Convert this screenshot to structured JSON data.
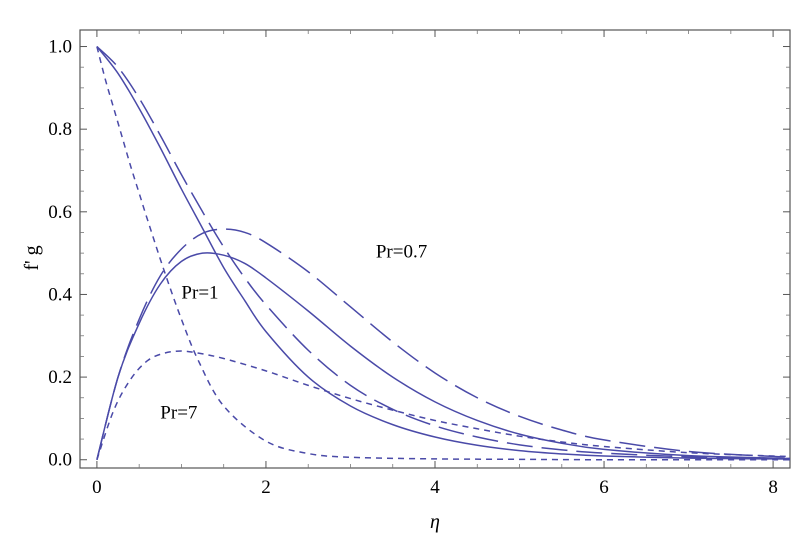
{
  "chart_data": {
    "type": "line",
    "title": "",
    "xlabel": "η",
    "ylabel": "f' g",
    "xlim": [
      -0.2,
      8.2
    ],
    "ylim": [
      -0.02,
      1.04
    ],
    "x_ticks": [
      0,
      2,
      4,
      6,
      8
    ],
    "y_ticks": [
      0.0,
      0.2,
      0.4,
      0.6,
      0.8,
      1.0
    ],
    "x_tick_labels": [
      "0",
      "2",
      "4",
      "6",
      "8"
    ],
    "y_tick_labels": [
      "0.0",
      "0.2",
      "0.4",
      "0.6",
      "0.8",
      "1.0"
    ],
    "grid": false,
    "line_color": "#4a4aa8",
    "annotations": [
      {
        "text": "Pr=0.7",
        "x": 3.3,
        "y": 0.49
      },
      {
        "text": "Pr=1",
        "x": 1.0,
        "y": 0.39
      },
      {
        "text": "Pr=7",
        "x": 0.75,
        "y": 0.1
      }
    ],
    "series": [
      {
        "name": "f' (Pr=1)",
        "style": "solid",
        "x": [
          0,
          0.25,
          0.5,
          0.75,
          1.0,
          1.25,
          1.5,
          1.75,
          2.0,
          2.5,
          3.0,
          3.5,
          4.0,
          4.5,
          5.0,
          5.5,
          6.0,
          7.0,
          8.0,
          8.2
        ],
        "y": [
          1.0,
          0.935,
          0.85,
          0.755,
          0.655,
          0.56,
          0.465,
          0.385,
          0.31,
          0.2,
          0.13,
          0.085,
          0.055,
          0.035,
          0.022,
          0.014,
          0.009,
          0.004,
          0.002,
          0.002
        ]
      },
      {
        "name": "g (Pr=1)",
        "style": "solid",
        "x": [
          0,
          0.25,
          0.5,
          0.75,
          1.0,
          1.25,
          1.5,
          1.75,
          2.0,
          2.5,
          3.0,
          3.5,
          4.0,
          4.5,
          5.0,
          5.5,
          6.0,
          7.0,
          8.0,
          8.2
        ],
        "y": [
          0.0,
          0.2,
          0.33,
          0.425,
          0.48,
          0.5,
          0.495,
          0.475,
          0.44,
          0.36,
          0.275,
          0.2,
          0.14,
          0.095,
          0.062,
          0.04,
          0.025,
          0.01,
          0.004,
          0.003
        ]
      },
      {
        "name": "f' (Pr=0.7)",
        "style": "longdash",
        "x": [
          0,
          0.25,
          0.5,
          0.75,
          1.0,
          1.25,
          1.5,
          1.75,
          2.0,
          2.5,
          3.0,
          3.5,
          4.0,
          4.5,
          5.0,
          5.5,
          6.0,
          7.0,
          8.0,
          8.2
        ],
        "y": [
          1.0,
          0.95,
          0.875,
          0.785,
          0.69,
          0.6,
          0.515,
          0.44,
          0.375,
          0.265,
          0.18,
          0.122,
          0.082,
          0.055,
          0.036,
          0.024,
          0.016,
          0.007,
          0.003,
          0.003
        ]
      },
      {
        "name": "g (Pr=0.7)",
        "style": "longdash",
        "x": [
          0,
          0.25,
          0.5,
          0.75,
          1.0,
          1.25,
          1.5,
          1.75,
          2.0,
          2.5,
          3.0,
          3.5,
          4.0,
          4.5,
          5.0,
          5.5,
          6.0,
          7.0,
          8.0,
          8.2
        ],
        "y": [
          0.0,
          0.2,
          0.34,
          0.445,
          0.51,
          0.548,
          0.558,
          0.55,
          0.525,
          0.455,
          0.37,
          0.285,
          0.21,
          0.15,
          0.105,
          0.072,
          0.048,
          0.02,
          0.008,
          0.007
        ]
      },
      {
        "name": "f' (Pr=7)",
        "style": "shortdash",
        "x": [
          0,
          0.1,
          0.2,
          0.3,
          0.4,
          0.5,
          0.6,
          0.8,
          1.0,
          1.2,
          1.5,
          2.0,
          2.5,
          3.0,
          4.0,
          5.0,
          6.0,
          8.0,
          8.2
        ],
        "y": [
          1.0,
          0.92,
          0.85,
          0.78,
          0.71,
          0.645,
          0.58,
          0.455,
          0.34,
          0.24,
          0.13,
          0.045,
          0.015,
          0.006,
          0.002,
          0.001,
          0.0,
          0.0,
          0.0
        ]
      },
      {
        "name": "g (Pr=7)",
        "style": "shortdash",
        "x": [
          0,
          0.2,
          0.4,
          0.6,
          0.8,
          1.0,
          1.2,
          1.5,
          2.0,
          2.5,
          3.0,
          3.5,
          4.0,
          4.5,
          5.0,
          5.5,
          6.0,
          7.0,
          8.0,
          8.2
        ],
        "y": [
          0.0,
          0.12,
          0.195,
          0.24,
          0.258,
          0.263,
          0.258,
          0.245,
          0.215,
          0.18,
          0.148,
          0.12,
          0.095,
          0.075,
          0.057,
          0.043,
          0.032,
          0.017,
          0.009,
          0.008
        ]
      }
    ]
  }
}
